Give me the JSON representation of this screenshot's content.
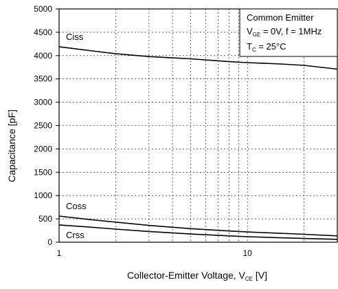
{
  "chart_data": {
    "type": "line",
    "x_scale": "log",
    "xlim": [
      1,
      30
    ],
    "ylim": [
      0,
      5000
    ],
    "grid": true,
    "x_ticks": [
      1,
      10
    ],
    "x_tick_labels": [
      "1",
      "10"
    ],
    "y_ticks": [
      0,
      500,
      1000,
      1500,
      2000,
      2500,
      3000,
      3500,
      4000,
      4500,
      5000
    ],
    "y_tick_labels": [
      "0",
      "500",
      "1000",
      "1500",
      "2000",
      "2500",
      "3000",
      "3500",
      "4000",
      "4500",
      "5000"
    ],
    "xlabel": {
      "main": "Collector-Emitter Voltage, V",
      "sub": "CE",
      "unit": " [V]"
    },
    "ylabel": "Capacitance [pF]",
    "annotation": {
      "line1": "Common Emitter",
      "line2": {
        "v": "V",
        "sub": "GE",
        "rest": " = 0V, f = 1MHz"
      },
      "line3": {
        "t": "T",
        "sub": "C",
        "rest": " = 25°C"
      }
    },
    "series": [
      {
        "name": "Ciss",
        "x": [
          1,
          1.5,
          2,
          3,
          5,
          8,
          10,
          15,
          20,
          30
        ],
        "y": [
          4190,
          4100,
          4040,
          3980,
          3930,
          3870,
          3850,
          3820,
          3790,
          3710
        ]
      },
      {
        "name": "Coss",
        "x": [
          1,
          1.5,
          2,
          3,
          5,
          8,
          10,
          15,
          20,
          30
        ],
        "y": [
          560,
          480,
          430,
          360,
          290,
          240,
          220,
          190,
          170,
          135
        ]
      },
      {
        "name": "Crss",
        "x": [
          1,
          1.5,
          2,
          3,
          5,
          8,
          10,
          15,
          20,
          30
        ],
        "y": [
          370,
          320,
          280,
          230,
          175,
          135,
          118,
          95,
          80,
          62
        ]
      }
    ]
  }
}
